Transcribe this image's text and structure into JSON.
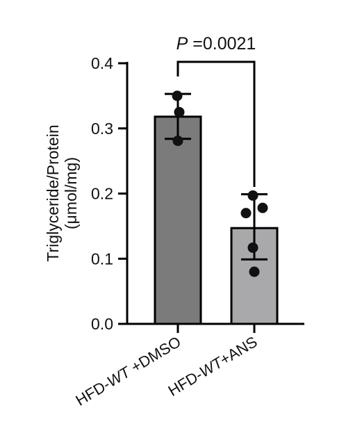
{
  "chart_data": {
    "type": "bar",
    "categories": [
      {
        "prefix": "HFD-",
        "italic": "WT",
        "suffix": " +DMSO"
      },
      {
        "prefix": "HFD-",
        "italic": "WT",
        "suffix": "+ANS"
      }
    ],
    "values": [
      0.318,
      0.147
    ],
    "error_bars": [
      {
        "low": 0.284,
        "high": 0.353
      },
      {
        "low": 0.099,
        "high": 0.199
      }
    ],
    "points": [
      [
        0.35,
        0.325,
        0.281
      ],
      [
        0.197,
        0.178,
        0.17,
        0.117,
        0.08
      ]
    ],
    "bar_colors": [
      "#7b7b7b",
      "#a9a9ab"
    ],
    "ylabel_line1": "Triglyceride/Protein",
    "ylabel_line2": "(μmol/mg)",
    "ylim": [
      0,
      0.4
    ],
    "yticks": [
      "0.0",
      "0.1",
      "0.2",
      "0.3",
      "0.4"
    ],
    "ytick_values": [
      0,
      0.1,
      0.2,
      0.3,
      0.4
    ],
    "significance": {
      "p_symbol": "P",
      "p_text": " =0.0021"
    },
    "grid": false,
    "legend": "none"
  }
}
